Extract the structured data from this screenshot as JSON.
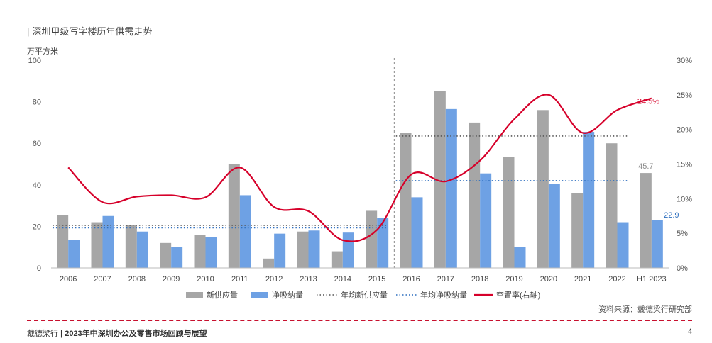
{
  "title": "深圳甲级写字楼历年供需走势",
  "footer": {
    "brand": "戴德梁行",
    "separator": "|",
    "report": "2023年中深圳办公及零售市场回顾与展望",
    "page": "4"
  },
  "source": "资料来源：戴德梁行研究部",
  "colors": {
    "supply": "#a6a6a6",
    "absorption": "#6ea1e4",
    "avg_supply": "#555555",
    "avg_absorption": "#2e6fbf",
    "vacancy": "#d6002a",
    "divider": "#c8102e"
  },
  "chart_data": {
    "type": "bar",
    "ylabel": "万平方米",
    "ylim": [
      0,
      100
    ],
    "yticks": [
      0,
      20,
      40,
      60,
      80,
      100
    ],
    "y2lim": [
      0,
      30
    ],
    "y2ticks": [
      "0%",
      "5%",
      "10%",
      "15%",
      "20%",
      "25%",
      "30%"
    ],
    "categories": [
      "2006",
      "2007",
      "2008",
      "2009",
      "2010",
      "2011",
      "2012",
      "2013",
      "2014",
      "2015",
      "2016",
      "2017",
      "2018",
      "2019",
      "2020",
      "2021",
      "2022",
      "H1 2023"
    ],
    "series": [
      {
        "name": "新供应量",
        "kind": "bar",
        "values": [
          25.5,
          22,
          20.5,
          12,
          16,
          50,
          4.5,
          17.5,
          8,
          27.5,
          65,
          85,
          70,
          53.5,
          76,
          36,
          60,
          45.7
        ]
      },
      {
        "name": "净吸纳量",
        "kind": "bar",
        "values": [
          13.5,
          25,
          17.5,
          10,
          15,
          35,
          16.5,
          18,
          17,
          24,
          34,
          76.5,
          45.5,
          10,
          40.5,
          65.5,
          22,
          22.9
        ]
      },
      {
        "name": "年均新供应量",
        "kind": "dotted",
        "segments": [
          {
            "from": "2006",
            "to": "2015",
            "value": 20.5
          },
          {
            "from": "2016",
            "to": "2022",
            "value": 63.5
          }
        ]
      },
      {
        "name": "年均净吸纳量",
        "kind": "dotted",
        "segments": [
          {
            "from": "2006",
            "to": "2015",
            "value": 19.3
          },
          {
            "from": "2016",
            "to": "2022",
            "value": 42.0
          }
        ]
      },
      {
        "name": "空置率(右轴)",
        "kind": "line",
        "axis": "right",
        "values": [
          14.5,
          9.5,
          10.3,
          10.5,
          10.2,
          14.5,
          8.8,
          8.2,
          4.0,
          5.5,
          13.5,
          12.5,
          15.5,
          21.5,
          25.0,
          19.5,
          22.8,
          24.5
        ]
      }
    ],
    "data_labels": {
      "H1 2023 新供应量": "45.7",
      "H1 2023 净吸纳量": "22.9",
      "H1 2023 空置率": "24.5%"
    },
    "divider_after": "2015",
    "grid": false,
    "legend_position": "bottom"
  }
}
